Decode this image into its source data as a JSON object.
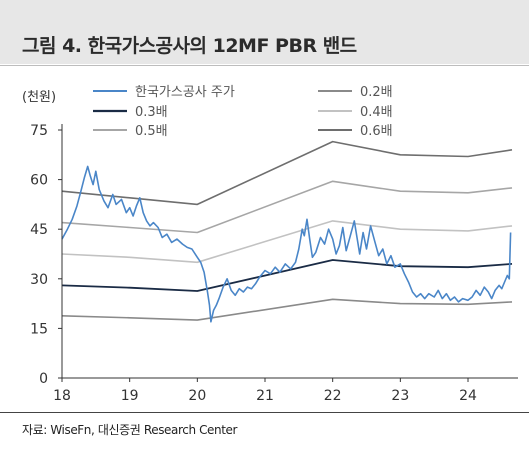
{
  "figure": {
    "title": "그림 4.  한국가스공사의 12MF PBR 밴드",
    "unit_label": "(천원)",
    "source": "자료: WiseFn, 대신증권 Research Center"
  },
  "chart_data": {
    "type": "line",
    "title": "그림 4. 한국가스공사의 12MF PBR 밴드",
    "ylabel": "(천원)",
    "xlabel": "",
    "ylim": [
      0,
      75
    ],
    "xlim": [
      2018.0,
      2024.65
    ],
    "yticks": [
      "75",
      "60",
      "45",
      "30",
      "15",
      "0"
    ],
    "xticks": [
      "18",
      "19",
      "20",
      "21",
      "22",
      "23",
      "24"
    ],
    "grid": false,
    "legend_position": "top",
    "colors": {
      "price": "#4a86c8",
      "0.2x": "#8a8a8a",
      "0.3x": "#1a2b45",
      "0.4x": "#c2c2c2",
      "0.5x": "#a6a6a6",
      "0.6x": "#6e6e6e"
    },
    "series": [
      {
        "name": "한국가스공사 주가",
        "key": "price",
        "points": [
          [
            2018.0,
            42.0
          ],
          [
            2018.08,
            45.0
          ],
          [
            2018.15,
            48.0
          ],
          [
            2018.22,
            52.0
          ],
          [
            2018.28,
            56.5
          ],
          [
            2018.33,
            60.5
          ],
          [
            2018.38,
            64.0
          ],
          [
            2018.42,
            61.0
          ],
          [
            2018.46,
            58.5
          ],
          [
            2018.5,
            62.5
          ],
          [
            2018.55,
            57.0
          ],
          [
            2018.62,
            53.5
          ],
          [
            2018.68,
            51.5
          ],
          [
            2018.75,
            55.5
          ],
          [
            2018.8,
            52.5
          ],
          [
            2018.88,
            54.0
          ],
          [
            2018.95,
            50.0
          ],
          [
            2019.0,
            51.5
          ],
          [
            2019.05,
            49.0
          ],
          [
            2019.1,
            52.0
          ],
          [
            2019.15,
            54.5
          ],
          [
            2019.2,
            50.0
          ],
          [
            2019.25,
            47.5
          ],
          [
            2019.3,
            46.0
          ],
          [
            2019.35,
            47.0
          ],
          [
            2019.42,
            45.5
          ],
          [
            2019.48,
            42.5
          ],
          [
            2019.55,
            43.5
          ],
          [
            2019.62,
            41.0
          ],
          [
            2019.7,
            42.0
          ],
          [
            2019.78,
            40.5
          ],
          [
            2019.85,
            39.5
          ],
          [
            2019.92,
            39.0
          ],
          [
            2020.0,
            36.5
          ],
          [
            2020.05,
            35.0
          ],
          [
            2020.1,
            32.0
          ],
          [
            2020.15,
            26.0
          ],
          [
            2020.18,
            22.0
          ],
          [
            2020.2,
            17.0
          ],
          [
            2020.24,
            20.5
          ],
          [
            2020.28,
            22.0
          ],
          [
            2020.32,
            24.0
          ],
          [
            2020.38,
            27.5
          ],
          [
            2020.44,
            30.0
          ],
          [
            2020.5,
            26.5
          ],
          [
            2020.56,
            25.0
          ],
          [
            2020.62,
            27.0
          ],
          [
            2020.68,
            26.0
          ],
          [
            2020.74,
            27.5
          ],
          [
            2020.8,
            27.0
          ],
          [
            2020.86,
            28.5
          ],
          [
            2020.92,
            30.5
          ],
          [
            2021.0,
            32.5
          ],
          [
            2021.08,
            31.5
          ],
          [
            2021.15,
            33.5
          ],
          [
            2021.22,
            32.0
          ],
          [
            2021.3,
            34.5
          ],
          [
            2021.38,
            33.0
          ],
          [
            2021.45,
            35.0
          ],
          [
            2021.5,
            39.0
          ],
          [
            2021.55,
            45.0
          ],
          [
            2021.58,
            43.0
          ],
          [
            2021.62,
            48.0
          ],
          [
            2021.66,
            42.0
          ],
          [
            2021.7,
            36.5
          ],
          [
            2021.75,
            38.0
          ],
          [
            2021.82,
            42.5
          ],
          [
            2021.88,
            40.5
          ],
          [
            2021.94,
            45.0
          ],
          [
            2022.0,
            42.0
          ],
          [
            2022.05,
            37.5
          ],
          [
            2022.1,
            40.0
          ],
          [
            2022.15,
            45.5
          ],
          [
            2022.2,
            38.5
          ],
          [
            2022.26,
            43.0
          ],
          [
            2022.32,
            47.5
          ],
          [
            2022.36,
            42.5
          ],
          [
            2022.4,
            37.5
          ],
          [
            2022.45,
            44.0
          ],
          [
            2022.5,
            39.0
          ],
          [
            2022.56,
            46.0
          ],
          [
            2022.62,
            41.5
          ],
          [
            2022.68,
            37.0
          ],
          [
            2022.74,
            39.0
          ],
          [
            2022.8,
            34.5
          ],
          [
            2022.86,
            37.0
          ],
          [
            2022.92,
            33.5
          ],
          [
            2023.0,
            34.5
          ],
          [
            2023.06,
            31.5
          ],
          [
            2023.12,
            29.0
          ],
          [
            2023.18,
            26.0
          ],
          [
            2023.24,
            24.5
          ],
          [
            2023.3,
            25.5
          ],
          [
            2023.36,
            24.0
          ],
          [
            2023.42,
            25.5
          ],
          [
            2023.5,
            24.5
          ],
          [
            2023.56,
            26.5
          ],
          [
            2023.62,
            24.0
          ],
          [
            2023.68,
            25.5
          ],
          [
            2023.74,
            23.5
          ],
          [
            2023.8,
            24.5
          ],
          [
            2023.86,
            23.0
          ],
          [
            2023.92,
            24.0
          ],
          [
            2024.0,
            23.5
          ],
          [
            2024.06,
            24.5
          ],
          [
            2024.12,
            26.5
          ],
          [
            2024.18,
            25.0
          ],
          [
            2024.24,
            27.5
          ],
          [
            2024.3,
            26.0
          ],
          [
            2024.35,
            24.0
          ],
          [
            2024.4,
            26.5
          ],
          [
            2024.46,
            28.0
          ],
          [
            2024.5,
            27.0
          ],
          [
            2024.55,
            29.5
          ],
          [
            2024.58,
            31.0
          ],
          [
            2024.61,
            30.0
          ],
          [
            2024.63,
            44.0
          ]
        ]
      },
      {
        "name": "0.6배",
        "key": "0.6x",
        "points": [
          [
            2018.0,
            56.5
          ],
          [
            2019.0,
            54.5
          ],
          [
            2020.0,
            52.5
          ],
          [
            2022.0,
            71.5
          ],
          [
            2023.0,
            67.5
          ],
          [
            2024.0,
            67.0
          ],
          [
            2024.65,
            69.0
          ]
        ]
      },
      {
        "name": "0.5배",
        "key": "0.5x",
        "points": [
          [
            2018.0,
            47.0
          ],
          [
            2019.0,
            45.5
          ],
          [
            2020.0,
            44.0
          ],
          [
            2022.0,
            59.5
          ],
          [
            2023.0,
            56.5
          ],
          [
            2024.0,
            56.0
          ],
          [
            2024.65,
            57.5
          ]
        ]
      },
      {
        "name": "0.4배",
        "key": "0.4x",
        "points": [
          [
            2018.0,
            37.5
          ],
          [
            2019.0,
            36.5
          ],
          [
            2020.0,
            35.0
          ],
          [
            2022.0,
            47.5
          ],
          [
            2023.0,
            45.0
          ],
          [
            2024.0,
            44.5
          ],
          [
            2024.65,
            46.0
          ]
        ]
      },
      {
        "name": "0.3배",
        "key": "0.3x",
        "points": [
          [
            2018.0,
            28.0
          ],
          [
            2019.0,
            27.3
          ],
          [
            2020.0,
            26.3
          ],
          [
            2022.0,
            35.7
          ],
          [
            2023.0,
            33.8
          ],
          [
            2024.0,
            33.5
          ],
          [
            2024.65,
            34.5
          ]
        ]
      },
      {
        "name": "0.2배",
        "key": "0.2x",
        "points": [
          [
            2018.0,
            18.8
          ],
          [
            2019.0,
            18.2
          ],
          [
            2020.0,
            17.5
          ],
          [
            2022.0,
            23.8
          ],
          [
            2023.0,
            22.5
          ],
          [
            2024.0,
            22.3
          ],
          [
            2024.65,
            23.0
          ]
        ]
      }
    ],
    "legend": [
      {
        "label": "한국가스공사 주가",
        "key": "price"
      },
      {
        "label": "0.2배",
        "key": "0.2x"
      },
      {
        "label": "0.3배",
        "key": "0.3x"
      },
      {
        "label": "0.4배",
        "key": "0.4x"
      },
      {
        "label": "0.5배",
        "key": "0.5x"
      },
      {
        "label": "0.6배",
        "key": "0.6x"
      }
    ]
  }
}
